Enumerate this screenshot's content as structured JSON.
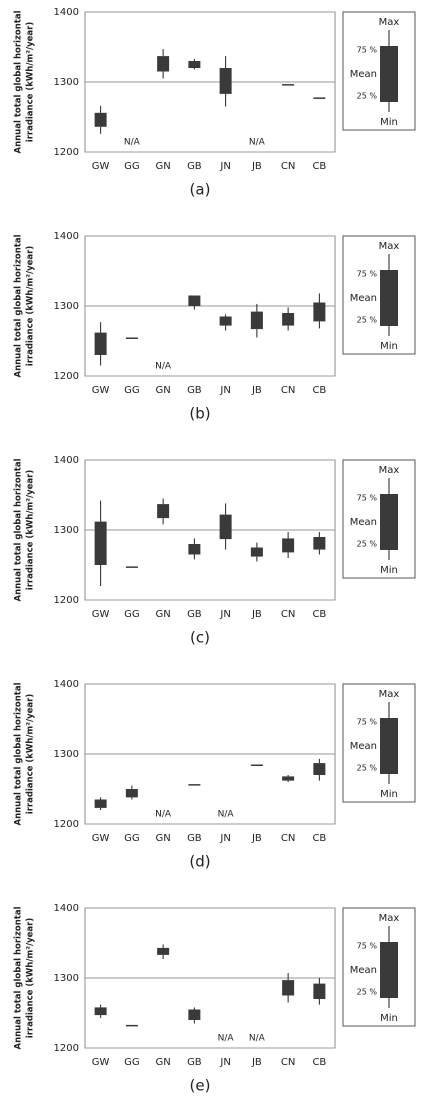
{
  "chart_data": [
    {
      "type": "box",
      "panel_label": "(a)",
      "ylabel": [
        "Annual total global horizontal",
        "irradiance (kWh/m²/year)"
      ],
      "categories": [
        "GW",
        "GG",
        "GN",
        "GB",
        "JN",
        "JB",
        "CN",
        "CB"
      ],
      "boxes": {
        "min": [
          1226,
          null,
          1305,
          1318,
          1265,
          null,
          1297,
          1278
        ],
        "q1": [
          1236,
          null,
          1315,
          1320,
          1283,
          null,
          1297,
          1278
        ],
        "q3": [
          1256,
          null,
          1337,
          1330,
          1320,
          null,
          1297,
          1278
        ],
        "max": [
          1266,
          null,
          1347,
          1333,
          1337,
          null,
          1297,
          1278
        ]
      },
      "na_label": "N/A",
      "color": "#3a3a3a",
      "ylim": [
        1200,
        1400
      ],
      "yticks": [
        1200,
        1300,
        1400
      ],
      "grid": true,
      "legend": {
        "max": "Max",
        "q3": "75 %",
        "mean": "Mean",
        "q1": "25 %",
        "min": "Min"
      }
    },
    {
      "type": "box",
      "panel_label": "(b)",
      "ylabel": [
        "Annual total global horizontal",
        "irradiance (kWh/m²/year)"
      ],
      "categories": [
        "GW",
        "GG",
        "GN",
        "GB",
        "JN",
        "JB",
        "CN",
        "CB"
      ],
      "boxes": {
        "min": [
          1215,
          1255,
          null,
          1295,
          1265,
          1255,
          1265,
          1268
        ],
        "q1": [
          1230,
          1255,
          null,
          1300,
          1272,
          1267,
          1272,
          1278
        ],
        "q3": [
          1262,
          1255,
          null,
          1315,
          1285,
          1292,
          1290,
          1305
        ],
        "max": [
          1277,
          1255,
          null,
          1315,
          1288,
          1303,
          1298,
          1318
        ]
      },
      "na_label": "N/A",
      "color": "#3a3a3a",
      "ylim": [
        1200,
        1400
      ],
      "yticks": [
        1200,
        1300,
        1400
      ],
      "grid": true,
      "legend": {
        "max": "Max",
        "q3": "75 %",
        "mean": "Mean",
        "q1": "25 %",
        "min": "Min"
      }
    },
    {
      "type": "box",
      "panel_label": "(c)",
      "ylabel": [
        "Annual total global horizontal",
        "irradiance (kWh/m²/year)"
      ],
      "categories": [
        "GW",
        "GG",
        "GN",
        "GB",
        "JN",
        "JB",
        "CN",
        "CB"
      ],
      "boxes": {
        "min": [
          1220,
          1248,
          1308,
          1258,
          1272,
          1255,
          1260,
          1265
        ],
        "q1": [
          1250,
          1248,
          1317,
          1265,
          1287,
          1262,
          1268,
          1272
        ],
        "q3": [
          1312,
          1248,
          1337,
          1280,
          1322,
          1275,
          1288,
          1290
        ],
        "max": [
          1342,
          1248,
          1345,
          1288,
          1338,
          1282,
          1297,
          1297
        ]
      },
      "na_label": "N/A",
      "color": "#3a3a3a",
      "ylim": [
        1200,
        1400
      ],
      "yticks": [
        1200,
        1300,
        1400
      ],
      "grid": true,
      "legend": {
        "max": "Max",
        "q3": "75 %",
        "mean": "Mean",
        "q1": "25 %",
        "min": "Min"
      }
    },
    {
      "type": "box",
      "panel_label": "(d)",
      "ylabel": [
        "Annual total global horizontal",
        "irradiance (kWh/m²/year)"
      ],
      "categories": [
        "GW",
        "GG",
        "GN",
        "GB",
        "JN",
        "JB",
        "CN",
        "CB"
      ],
      "boxes": {
        "min": [
          1220,
          1235,
          null,
          1257,
          null,
          1285,
          1260,
          1262
        ],
        "q1": [
          1223,
          1238,
          null,
          1257,
          null,
          1285,
          1262,
          1270
        ],
        "q3": [
          1235,
          1250,
          null,
          1257,
          null,
          1285,
          1268,
          1287
        ],
        "max": [
          1238,
          1255,
          null,
          1257,
          null,
          1285,
          1270,
          1293
        ]
      },
      "na_label": "N/A",
      "color": "#3a3a3a",
      "ylim": [
        1200,
        1400
      ],
      "yticks": [
        1200,
        1300,
        1400
      ],
      "grid": true,
      "legend": {
        "max": "Max",
        "q3": "75 %",
        "mean": "Mean",
        "q1": "25 %",
        "min": "Min"
      }
    },
    {
      "type": "box",
      "panel_label": "(e)",
      "ylabel": [
        "Annual total global horizontal",
        "irradiance (kWh/m²/year)"
      ],
      "categories": [
        "GW",
        "GG",
        "GN",
        "GB",
        "JN",
        "JB",
        "CN",
        "CB"
      ],
      "boxes": {
        "min": [
          1243,
          1233,
          1327,
          1235,
          null,
          null,
          1265,
          1262
        ],
        "q1": [
          1247,
          1233,
          1333,
          1240,
          null,
          null,
          1275,
          1270
        ],
        "q3": [
          1258,
          1233,
          1343,
          1255,
          null,
          null,
          1297,
          1292
        ],
        "max": [
          1262,
          1233,
          1348,
          1258,
          null,
          null,
          1307,
          1300
        ]
      },
      "na_label": "N/A",
      "color": "#3a3a3a",
      "ylim": [
        1200,
        1400
      ],
      "yticks": [
        1200,
        1300,
        1400
      ],
      "grid": true,
      "legend": {
        "max": "Max",
        "q3": "75 %",
        "mean": "Mean",
        "q1": "25 %",
        "min": "Min"
      }
    }
  ]
}
